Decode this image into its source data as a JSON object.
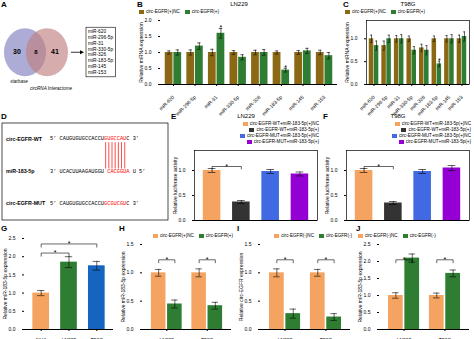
{
  "chart_data": [
    {
      "type": "venn",
      "panel": "A",
      "sets": [
        {
          "name": "starbase",
          "color": "#8080C0",
          "value": 30
        },
        {
          "name": "circRNA Interactome",
          "color": "#C08080",
          "value": 41
        }
      ],
      "overlap": 8,
      "list": [
        "miR-620",
        "miR-296-5p",
        "miR-31",
        "miR-330-5p",
        "miR-326",
        "miR-183-5p",
        "miR-145",
        "miR-153"
      ]
    },
    {
      "type": "bar",
      "panel": "B",
      "title": "LN229",
      "categories": [
        "miR-620",
        "miR-296-5p",
        "miR-31",
        "miR-330-5p",
        "miR-326",
        "miR-183-5p",
        "miR-145",
        "miR-153"
      ],
      "series": [
        {
          "name": "circ-EGFR(+)NC",
          "color": "#8B6914",
          "values": [
            1.0,
            1.0,
            1.0,
            1.0,
            1.0,
            1.0,
            1.0,
            1.0
          ],
          "errors": [
            0.05,
            0.08,
            0.1,
            0.06,
            0.07,
            0.05,
            0.06,
            0.07
          ]
        },
        {
          "name": "circ-EGFR(+)",
          "color": "#2E7D32",
          "values": [
            1.0,
            1.2,
            1.6,
            0.85,
            1.0,
            0.45,
            1.05,
            0.9
          ],
          "errors": [
            0.08,
            0.1,
            0.15,
            0.08,
            0.09,
            0.06,
            0.08,
            0.1
          ]
        }
      ],
      "ylabel": "Relative miRNA expression",
      "ylim": [
        0,
        2.0
      ],
      "yticks": [
        {
          "value": 0,
          "label": "0.0"
        },
        0.5,
        {
          "value": 1,
          "label": "1.0"
        },
        1.5,
        {
          "value": 2,
          "label": "2.0"
        }
      ],
      "legend": "upper left",
      "annotations": [
        {
          "text": "*",
          "category": "miR-31",
          "series": "circ-EGFR(+)",
          "y": 1.78
        },
        {
          "text": "*",
          "category": "miR-183-5p",
          "series": "circ-EGFR(+)",
          "y": 0.52
        }
      ]
    },
    {
      "type": "bar",
      "panel": "C",
      "title": "T98G",
      "categories": [
        "miR-620",
        "miR-296-5p",
        "miR-31",
        "miR-330-5p",
        "miR-326",
        "miR-183-5p",
        "miR-145",
        "miR-153"
      ],
      "series": [
        {
          "name": "circ-EGFR(+)NC",
          "color": "#8B6914",
          "values": [
            1.0,
            0.85,
            1.0,
            1.0,
            0.8,
            1.0,
            1.0,
            1.0
          ],
          "errors": [
            0.08,
            0.1,
            0.07,
            0.06,
            0.08,
            0.06,
            0.07,
            0.08
          ]
        },
        {
          "name": "circ-EGFR(+)",
          "color": "#2E7D32",
          "values": [
            0.85,
            1.0,
            1.0,
            0.75,
            0.75,
            0.45,
            1.0,
            1.05
          ],
          "errors": [
            0.1,
            0.08,
            0.09,
            0.08,
            0.1,
            0.06,
            0.09,
            0.1
          ]
        }
      ],
      "ylabel": "Relative miRNA expression",
      "ylim": [
        0,
        1.4
      ],
      "yticks": [
        {
          "value": 0,
          "label": "0.0"
        },
        0.5,
        {
          "value": 1,
          "label": "1.0"
        }
      ],
      "legend": "upper left",
      "annotations": [
        {
          "text": "*",
          "category": "miR-183-5p",
          "series": "circ-EGFR(+)",
          "y": 0.52
        }
      ]
    },
    {
      "type": "sequence",
      "panel": "D",
      "color": "red",
      "rows": [
        {
          "label": "circ-EGFR-WT",
          "before": "5’ CAUGUGUGCCACCU",
          "highlight": "GUGCCAU",
          "after": "C 3’"
        },
        {
          "label": "miR-183-5p",
          "before": "3’ UCACUUAAGAUGGU ",
          "highlight": "CACGGUA",
          "after": " U 5’"
        },
        {
          "label": "circ-EGFR-MUT",
          "before": "5’ CAUGUGUGCCACCU",
          "highlight": "GCGUCGU",
          "after": "C 3’"
        }
      ]
    },
    {
      "type": "bar",
      "panel": "E",
      "title": "LN229",
      "categories": [
        "circ-EGFR-WT+miR-183-5p(+)NC",
        "circ-EGFR-WT+miR-183-5p(+)",
        "circ-EGFR-MUT+miR-183-5p(+)NC",
        "circ-EGFR-MUT+miR-183-5p(+)"
      ],
      "values": [
        1.0,
        0.37,
        0.98,
        0.93
      ],
      "errors": [
        0.04,
        0.03,
        0.04,
        0.04
      ],
      "colors": [
        "#F4A460",
        "#333333",
        "#4169E1",
        "#9400D3"
      ],
      "ylabel": "Relative luciferase activity",
      "ylim": [
        0,
        1.4
      ],
      "yticks": [
        {
          "value": 0,
          "label": "0.0"
        },
        0.5,
        {
          "value": 1,
          "label": "1.0"
        }
      ],
      "legend": "upper right",
      "tick_labels": "y",
      "annotations": [
        {
          "text": "*",
          "bracket": [
            "circ-EGFR-WT+miR-183-5p(+)NC",
            "circ-EGFR-WT+miR-183-5p(+)"
          ],
          "y": 1.08
        }
      ]
    },
    {
      "type": "bar",
      "panel": "F",
      "title": "T98G",
      "categories": [
        "circ-EGFR-WT+miR-183-5p(+)NC",
        "circ-EGFR-WT+miR-183-5p(+)",
        "circ-EGFR-MUT+miR-183-5p(+)NC",
        "circ-EGFR-MUT+miR-183-5p(+)"
      ],
      "values": [
        1.0,
        0.35,
        0.98,
        1.05
      ],
      "errors": [
        0.04,
        0.03,
        0.04,
        0.05
      ],
      "colors": [
        "#F4A460",
        "#333333",
        "#4169E1",
        "#9400D3"
      ],
      "ylabel": "Relative luciferase activity",
      "ylim": [
        0,
        1.4
      ],
      "yticks": [
        {
          "value": 0,
          "label": "0.0"
        },
        0.5,
        {
          "value": 1,
          "label": "1.0"
        }
      ],
      "legend": "upper right",
      "tick_labels": "y",
      "annotations": [
        {
          "text": "*",
          "bracket": [
            "circ-EGFR-WT+miR-183-5p(+)NC",
            "circ-EGFR-WT+miR-183-5p(+)"
          ],
          "y": 1.08
        }
      ]
    },
    {
      "type": "bar",
      "panel": "G",
      "categories": [
        "NHA",
        "LN229",
        "T98G"
      ],
      "values": [
        1.0,
        1.85,
        1.75
      ],
      "errors": [
        0.07,
        0.15,
        0.12
      ],
      "colors": [
        "#F4A460",
        "#2E7D32",
        "#1565C0"
      ],
      "ylabel": "Relative miR-183-5p expression",
      "ylim": [
        0,
        2.5
      ],
      "yticks": [
        {
          "value": 0,
          "label": "0.0"
        },
        0.5,
        {
          "value": 1,
          "label": "1.0"
        },
        1.5,
        {
          "value": 2,
          "label": "2.0"
        },
        2.5
      ],
      "annotations": [
        {
          "text": "*",
          "bracket": [
            "NHA",
            "LN229"
          ],
          "y": 2.1
        },
        {
          "text": "*",
          "bracket": [
            "NHA",
            "T98G"
          ],
          "y": 2.35
        }
      ]
    },
    {
      "type": "bar",
      "panel": "H",
      "categories": [
        "LN229",
        "T98G"
      ],
      "series": [
        {
          "name": "circ-EGFR(+)NC",
          "color": "#F4A460",
          "values": [
            1.0,
            1.0
          ],
          "errors": [
            0.06,
            0.07
          ]
        },
        {
          "name": "circ-EGFR(+)",
          "color": "#2E7D32",
          "values": [
            0.45,
            0.42
          ],
          "errors": [
            0.07,
            0.06
          ]
        }
      ],
      "ylabel": "Relative miR-183-5p expression",
      "ylim": [
        0,
        1.5
      ],
      "yticks": [
        {
          "value": 0,
          "label": "0.0"
        },
        0.5,
        {
          "value": 1,
          "label": "1.0"
        },
        1.5
      ],
      "legend": "upper right",
      "annotations": [
        {
          "text": "*",
          "category": "LN229",
          "bracket": [
            "circ-EGFR(+)NC",
            "circ-EGFR(+)"
          ],
          "y": 1.23
        },
        {
          "text": "*",
          "category": "T98G",
          "bracket": [
            "circ-EGFR(+)NC",
            "circ-EGFR(+)"
          ],
          "y": 1.23
        }
      ]
    },
    {
      "type": "bar",
      "panel": "I",
      "categories": [
        "LN229",
        "T98G"
      ],
      "series": [
        {
          "name": "circ-EGFR(-)NC",
          "color": "#F4A460",
          "values": [
            1.0,
            1.0
          ],
          "errors": [
            0.07,
            0.06
          ]
        },
        {
          "name": "circ-EGFR(-)",
          "color": "#2E7D32",
          "values": [
            0.28,
            0.22
          ],
          "errors": [
            0.08,
            0.06
          ]
        }
      ],
      "ylabel": "Relative circ-EGFR expression",
      "ylim": [
        0,
        1.5
      ],
      "yticks": [
        {
          "value": 0,
          "label": "0.0"
        },
        0.5,
        {
          "value": 1,
          "label": "1.0"
        },
        1.5
      ],
      "legend": "upper right",
      "annotations": [
        {
          "text": "*",
          "category": "LN229",
          "bracket": [
            "circ-EGFR(-)NC",
            "circ-EGFR(-)"
          ],
          "y": 1.23
        },
        {
          "text": "*",
          "category": "T98G",
          "bracket": [
            "circ-EGFR(-)NC",
            "circ-EGFR(-)"
          ],
          "y": 1.23
        }
      ]
    },
    {
      "type": "bar",
      "panel": "J",
      "categories": [
        "LN229",
        "T98G"
      ],
      "series": [
        {
          "name": "circ-EGFR(-)NC",
          "color": "#F4A460",
          "values": [
            1.0,
            1.0
          ],
          "errors": [
            0.08,
            0.07
          ]
        },
        {
          "name": "circ-EGFR(-)",
          "color": "#2E7D32",
          "values": [
            2.1,
            1.65
          ],
          "errors": [
            0.12,
            0.1
          ]
        }
      ],
      "ylabel": "Relative miR-183-5p expression",
      "ylim": [
        0,
        2.5
      ],
      "yticks": [
        {
          "value": 0,
          "label": "0.0"
        },
        0.5,
        {
          "value": 1,
          "label": "1.0"
        },
        1.5,
        {
          "value": 2,
          "label": "2.0"
        },
        2.5
      ],
      "legend": "upper left",
      "annotations": [
        {
          "text": "*",
          "category": "LN229",
          "bracket": [
            "circ-EGFR(-)NC",
            "circ-EGFR(-)"
          ],
          "y": 2.05
        },
        {
          "text": "*",
          "category": "T98G",
          "bracket": [
            "circ-EGFR(-)NC",
            "circ-EGFR(-)"
          ],
          "y": 2.05
        }
      ]
    }
  ]
}
